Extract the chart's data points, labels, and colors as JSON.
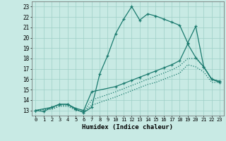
{
  "xlabel": "Humidex (Indice chaleur)",
  "xlim": [
    -0.5,
    23.5
  ],
  "ylim": [
    12.5,
    23.5
  ],
  "yticks": [
    13,
    14,
    15,
    16,
    17,
    18,
    19,
    20,
    21,
    22,
    23
  ],
  "xticks": [
    0,
    1,
    2,
    3,
    4,
    5,
    6,
    7,
    8,
    9,
    10,
    11,
    12,
    13,
    14,
    15,
    16,
    17,
    18,
    19,
    20,
    21,
    22,
    23
  ],
  "bg_color": "#c8eae4",
  "grid_color": "#9ecfc7",
  "line_color": "#1a7a6e",
  "lines": [
    {
      "x": [
        0,
        1,
        2,
        3,
        4,
        5,
        6,
        7,
        8,
        9,
        10,
        11,
        12,
        13,
        14,
        15,
        16,
        17,
        18,
        19,
        20,
        21,
        22,
        23
      ],
      "y": [
        13,
        12.9,
        13.3,
        13.6,
        13.6,
        13.1,
        12.8,
        13.3,
        16.5,
        18.3,
        20.4,
        21.8,
        23.0,
        21.7,
        22.3,
        22.1,
        21.8,
        21.5,
        21.2,
        19.5,
        21.1,
        17.2,
        16.0,
        15.7
      ],
      "style": "-",
      "marker": "+",
      "lw": 0.9
    },
    {
      "x": [
        0,
        2,
        3,
        4,
        5,
        6,
        7,
        10,
        11,
        12,
        13,
        14,
        15,
        16,
        17,
        18,
        19,
        20,
        21,
        22,
        23
      ],
      "y": [
        13,
        13.3,
        13.6,
        13.6,
        13.2,
        13.0,
        14.8,
        15.3,
        15.6,
        15.9,
        16.2,
        16.5,
        16.8,
        17.1,
        17.4,
        17.8,
        19.4,
        18.1,
        17.2,
        16.0,
        15.8
      ],
      "style": "-",
      "marker": "+",
      "lw": 0.9
    },
    {
      "x": [
        0,
        2,
        3,
        4,
        5,
        6,
        7,
        10,
        11,
        12,
        13,
        14,
        15,
        16,
        17,
        18,
        19,
        20,
        21,
        22,
        23
      ],
      "y": [
        13,
        13.2,
        13.5,
        13.5,
        13.1,
        12.9,
        14.0,
        14.8,
        15.1,
        15.4,
        15.7,
        16.0,
        16.3,
        16.6,
        16.9,
        17.3,
        18.0,
        18.0,
        17.2,
        16.0,
        15.8
      ],
      "style": ":",
      "marker": null,
      "lw": 0.9
    },
    {
      "x": [
        0,
        2,
        3,
        4,
        5,
        6,
        7,
        10,
        11,
        12,
        13,
        14,
        15,
        16,
        17,
        18,
        19,
        20,
        21,
        22,
        23
      ],
      "y": [
        13,
        13.1,
        13.4,
        13.4,
        13.0,
        12.9,
        13.5,
        14.3,
        14.6,
        14.9,
        15.2,
        15.5,
        15.7,
        16.0,
        16.3,
        16.6,
        17.4,
        17.2,
        16.7,
        15.7,
        15.7
      ],
      "style": ":",
      "marker": null,
      "lw": 0.9
    }
  ]
}
